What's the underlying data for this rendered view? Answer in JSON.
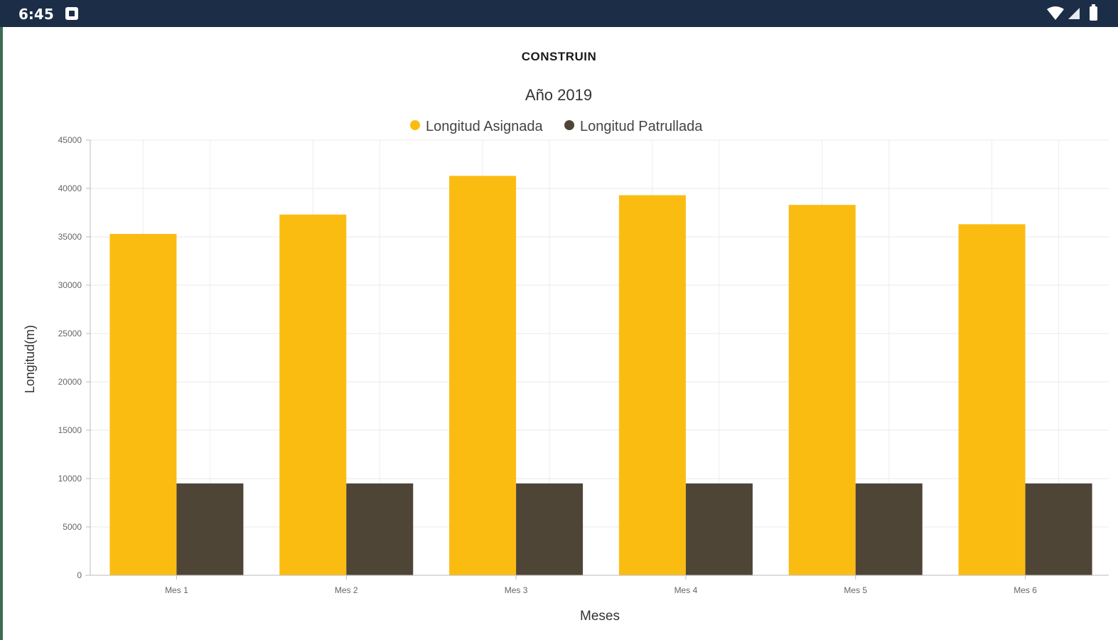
{
  "status_bar": {
    "time": "6:45",
    "icons": [
      "notification-icon",
      "wifi-icon",
      "signal-icon",
      "battery-icon"
    ],
    "background": "#1c2d48"
  },
  "app": {
    "title": "CONSTRUIN"
  },
  "chart_data": {
    "type": "bar",
    "title": "Año 2019",
    "xlabel": "Meses",
    "ylabel": "Longitud(m)",
    "categories": [
      "Mes 1",
      "Mes 2",
      "Mes 3",
      "Mes 4",
      "Mes 5",
      "Mes 6"
    ],
    "series": [
      {
        "name": "Longitud Asignada",
        "color": "#fbbc12",
        "values": [
          35300,
          37300,
          41300,
          39300,
          38300,
          36300
        ]
      },
      {
        "name": "Longitud Patrullada",
        "color": "#4e4536",
        "values": [
          9500,
          9500,
          9500,
          9500,
          9500,
          9500
        ]
      }
    ],
    "ylim": [
      0,
      45000
    ],
    "yticks": [
      "0",
      "5000",
      "10000",
      "15000",
      "20000",
      "25000",
      "30000",
      "35000",
      "40000",
      "45000"
    ],
    "grid": true,
    "legend": "top-center"
  }
}
